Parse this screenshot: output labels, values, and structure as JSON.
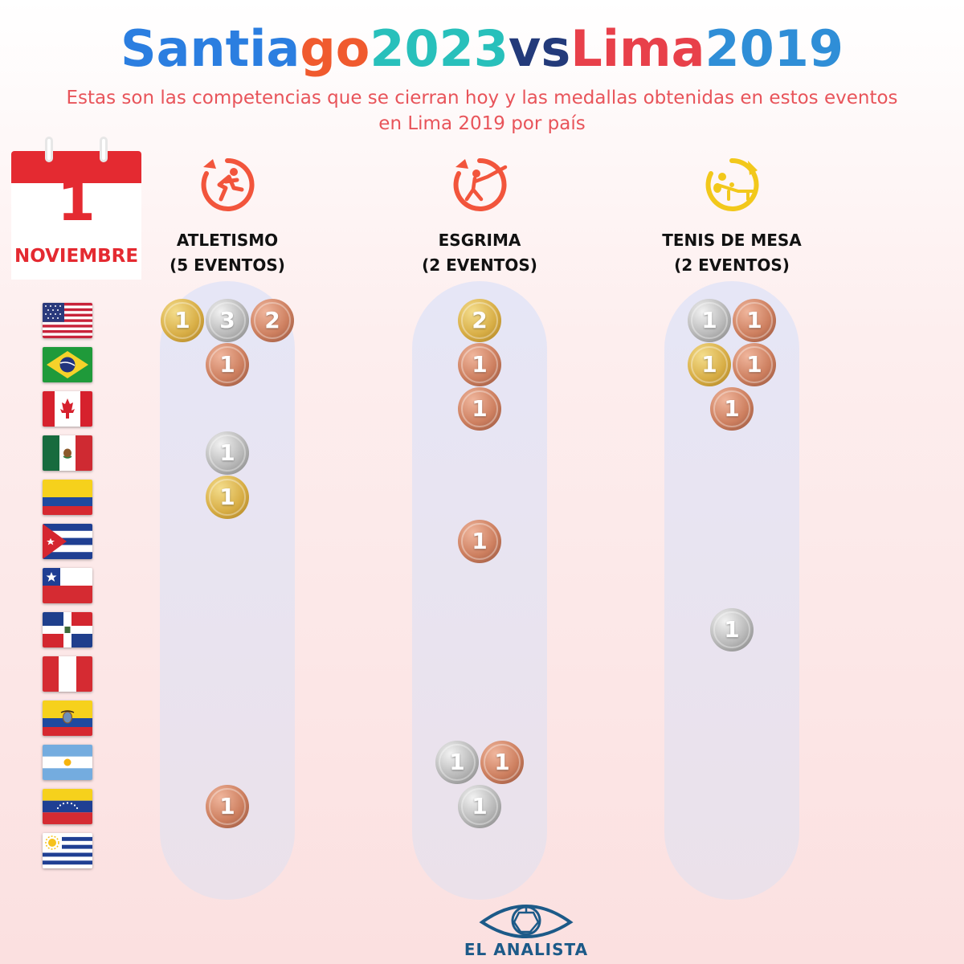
{
  "title": {
    "parts": [
      {
        "text": "Santia",
        "color": "#2b7ee0"
      },
      {
        "text": "go",
        "color": "#f05a2e"
      },
      {
        "text": " 2023",
        "color": "#28c0bb"
      },
      {
        "text": " vs",
        "color": "#233a7a"
      },
      {
        "text": " Lima",
        "color": "#e8404a"
      },
      {
        "text": " 2019",
        "color": "#2f8ed7"
      }
    ]
  },
  "subtitle": "Estas son las competencias que se cierran hoy y las medallas obtenidas en estos eventos en Lima 2019 por país",
  "calendar": {
    "day": "1",
    "month": "NOVIEMBRE"
  },
  "countries": [
    {
      "flag": "usa-flag-icon"
    },
    {
      "flag": "brazil-flag-icon"
    },
    {
      "flag": "canada-flag-icon"
    },
    {
      "flag": "mexico-flag-icon"
    },
    {
      "flag": "colombia-flag-icon"
    },
    {
      "flag": "cuba-flag-icon"
    },
    {
      "flag": "chile-flag-icon"
    },
    {
      "flag": "dominican-republic-flag-icon"
    },
    {
      "flag": "peru-flag-icon"
    },
    {
      "flag": "ecuador-flag-icon"
    },
    {
      "flag": "argentina-flag-icon"
    },
    {
      "flag": "venezuela-flag-icon"
    },
    {
      "flag": "uruguay-flag-icon"
    }
  ],
  "sports": [
    {
      "name": "ATLETISMO",
      "events": "(5 EVENTOS)",
      "icon": "athletics-runner-icon",
      "icon_color": "#f2553c",
      "medals": [
        {
          "country": 0,
          "gold": 1,
          "silver": 3,
          "bronze": 2
        },
        {
          "country": 1,
          "gold": 0,
          "silver": 0,
          "bronze": 1
        },
        {
          "country": 3,
          "gold": 0,
          "silver": 1,
          "bronze": 0
        },
        {
          "country": 4,
          "gold": 1,
          "silver": 0,
          "bronze": 0
        },
        {
          "country": 11,
          "gold": 0,
          "silver": 0,
          "bronze": 1
        }
      ]
    },
    {
      "name": "ESGRIMA",
      "events": "(2 EVENTOS)",
      "icon": "fencing-icon",
      "icon_color": "#f2553c",
      "medals": [
        {
          "country": 0,
          "gold": 2,
          "silver": 0,
          "bronze": 0
        },
        {
          "country": 1,
          "gold": 0,
          "silver": 0,
          "bronze": 1
        },
        {
          "country": 2,
          "gold": 0,
          "silver": 0,
          "bronze": 1
        },
        {
          "country": 5,
          "gold": 0,
          "silver": 0,
          "bronze": 1
        },
        {
          "country": 10,
          "gold": 0,
          "silver": 1,
          "bronze": 1
        },
        {
          "country": 11,
          "gold": 0,
          "silver": 1,
          "bronze": 0
        }
      ]
    },
    {
      "name": "TENIS DE MESA",
      "events": "(2 EVENTOS)",
      "icon": "table-tennis-icon",
      "icon_color": "#f2c81b",
      "medals": [
        {
          "country": 0,
          "gold": 0,
          "silver": 1,
          "bronze": 1
        },
        {
          "country": 1,
          "gold": 1,
          "silver": 0,
          "bronze": 1
        },
        {
          "country": 2,
          "gold": 0,
          "silver": 0,
          "bronze": 1
        },
        {
          "country": 7,
          "gold": 0,
          "silver": 1,
          "bronze": 0
        }
      ]
    }
  ],
  "brand": {
    "name": "EL ANALISTA",
    "logo": "eye-logo-icon",
    "color": "#1c5a88"
  }
}
